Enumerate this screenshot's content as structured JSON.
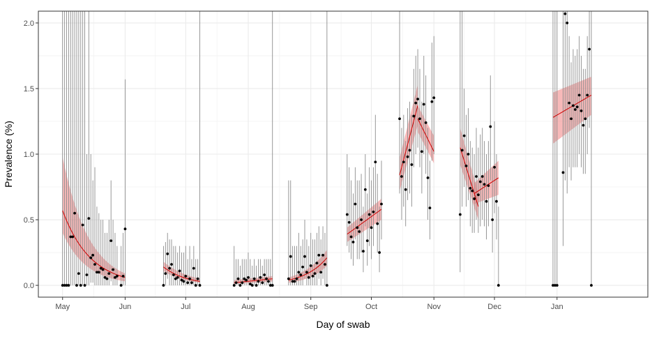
{
  "chart_data": {
    "type": "scatter",
    "title": "",
    "xlabel": "Day of swab",
    "ylabel": "Prevalence (%)",
    "ylim": [
      -0.09,
      2.09
    ],
    "xlim": [
      -12,
      290
    ],
    "grid": true,
    "legend": "none",
    "x_ticks": [
      {
        "day": 0,
        "label": "May"
      },
      {
        "day": 31,
        "label": "Jun"
      },
      {
        "day": 61,
        "label": "Jul"
      },
      {
        "day": 92,
        "label": "Aug"
      },
      {
        "day": 123,
        "label": "Sep"
      },
      {
        "day": 153,
        "label": "Oct"
      },
      {
        "day": 184,
        "label": "Nov"
      },
      {
        "day": 214,
        "label": "Dec"
      },
      {
        "day": 245,
        "label": "Jan"
      }
    ],
    "y_ticks": [
      {
        "value": 0,
        "label": "0.0"
      },
      {
        "value": 0.5,
        "label": "0.5"
      },
      {
        "value": 1.0,
        "label": "1.0"
      },
      {
        "value": 1.5,
        "label": "1.5"
      },
      {
        "value": 2.0,
        "label": "2.0"
      }
    ],
    "colors": {
      "points": "#000000",
      "errorbars": "#8c8c8c",
      "fit_line": "#cc0000",
      "fit_band": "#f08080",
      "grid": "#ebebeb",
      "panel_border": "#333333"
    },
    "points": [
      [
        0,
        0,
        0,
        2.1
      ],
      [
        1,
        0,
        0,
        2.1
      ],
      [
        2,
        0,
        0,
        2.1
      ],
      [
        3,
        0,
        0,
        2.1
      ],
      [
        4,
        0.37,
        0,
        2.1
      ],
      [
        5,
        0.37,
        0,
        2.1
      ],
      [
        6,
        0.55,
        0,
        2.1
      ],
      [
        7,
        0,
        0,
        2.1
      ],
      [
        8,
        0.09,
        0,
        2.1
      ],
      [
        9,
        0,
        0,
        2.1
      ],
      [
        10,
        0.46,
        0,
        2.1
      ],
      [
        11,
        0,
        0,
        2.1
      ],
      [
        12,
        0.08,
        0,
        1.0
      ],
      [
        13,
        0.51,
        0,
        2.1
      ],
      [
        14,
        0.21,
        0.02,
        1.0
      ],
      [
        15,
        0.23,
        0.02,
        0.8
      ],
      [
        16,
        0.16,
        0,
        0.9
      ],
      [
        17,
        0.1,
        0,
        0.6
      ],
      [
        18,
        0.1,
        0,
        0.55
      ],
      [
        19,
        0.13,
        0,
        0.5
      ],
      [
        20,
        0.12,
        0,
        0.5
      ],
      [
        21,
        0.06,
        0,
        0.4
      ],
      [
        22,
        0.05,
        0,
        0.4
      ],
      [
        23,
        0.09,
        0,
        0.5
      ],
      [
        24,
        0.34,
        0.03,
        0.8
      ],
      [
        25,
        0.12,
        0,
        0.5
      ],
      [
        26,
        0.06,
        0,
        0.4
      ],
      [
        27,
        0.07,
        0,
        0.3
      ],
      [
        29,
        0,
        0,
        0.3
      ],
      [
        30,
        0.07,
        0,
        0.4
      ],
      [
        31,
        0.43,
        0,
        1.57
      ],
      [
        50,
        0,
        0,
        0.3
      ],
      [
        51,
        0.09,
        0,
        0.33
      ],
      [
        52,
        0.24,
        0.05,
        0.4
      ],
      [
        53,
        0.13,
        0,
        0.35
      ],
      [
        54,
        0.16,
        0,
        0.35
      ],
      [
        55,
        0.08,
        0,
        0.3
      ],
      [
        56,
        0.05,
        0,
        0.3
      ],
      [
        57,
        0.06,
        0,
        0.25
      ],
      [
        58,
        0.11,
        0,
        0.3
      ],
      [
        59,
        0.04,
        0,
        0.25
      ],
      [
        60,
        0.03,
        0,
        0.25
      ],
      [
        61,
        0.07,
        0,
        0.3
      ],
      [
        62,
        0.02,
        0,
        0.2
      ],
      [
        63,
        0.05,
        0,
        0.3
      ],
      [
        64,
        0.02,
        0,
        0.2
      ],
      [
        65,
        0.13,
        0,
        0.3
      ],
      [
        66,
        0,
        0,
        0.2
      ],
      [
        67,
        0.05,
        0,
        0.2
      ],
      [
        68,
        0,
        0,
        2.1
      ],
      [
        85,
        0,
        0,
        0.3
      ],
      [
        86,
        0.02,
        0,
        0.2
      ],
      [
        87,
        0.05,
        0,
        0.2
      ],
      [
        88,
        0,
        0,
        0.15
      ],
      [
        89,
        0.02,
        0,
        0.2
      ],
      [
        90,
        0.05,
        0,
        0.2
      ],
      [
        91,
        0.04,
        0,
        0.2
      ],
      [
        92,
        0.06,
        0,
        0.25
      ],
      [
        93,
        0.01,
        0,
        0.2
      ],
      [
        94,
        0,
        0,
        0.15
      ],
      [
        95,
        0.05,
        0,
        0.2
      ],
      [
        96,
        0,
        0,
        0.15
      ],
      [
        97,
        0.03,
        0,
        0.2
      ],
      [
        98,
        0.06,
        0,
        0.2
      ],
      [
        99,
        0.02,
        0,
        0.15
      ],
      [
        100,
        0.08,
        0,
        0.2
      ],
      [
        101,
        0.05,
        0,
        0.2
      ],
      [
        102,
        0.03,
        0,
        0.2
      ],
      [
        103,
        0,
        0,
        0.2
      ],
      [
        104,
        0,
        0,
        2.1
      ],
      [
        112,
        0.05,
        0,
        0.8
      ],
      [
        113,
        0.22,
        0,
        0.8
      ],
      [
        114,
        0.03,
        0,
        0.3
      ],
      [
        115,
        0.03,
        0,
        0.3
      ],
      [
        116,
        0.05,
        0,
        0.3
      ],
      [
        117,
        0.1,
        0,
        0.4
      ],
      [
        118,
        0.08,
        0,
        0.3
      ],
      [
        119,
        0.14,
        0,
        0.35
      ],
      [
        120,
        0.22,
        0.05,
        0.5
      ],
      [
        121,
        0.1,
        0,
        0.35
      ],
      [
        122,
        0.06,
        0,
        0.3
      ],
      [
        123,
        0.15,
        0,
        0.4
      ],
      [
        124,
        0.07,
        0,
        0.35
      ],
      [
        125,
        0.09,
        0,
        0.35
      ],
      [
        126,
        0.17,
        0,
        0.4
      ],
      [
        127,
        0.23,
        0.05,
        0.45
      ],
      [
        128,
        0.1,
        0,
        0.35
      ],
      [
        129,
        0.23,
        0.05,
        0.45
      ],
      [
        130,
        0.16,
        0,
        0.4
      ],
      [
        131,
        0,
        0,
        2.1
      ],
      [
        141,
        0.54,
        0.3,
        1.0
      ],
      [
        142,
        0.48,
        0.25,
        0.9
      ],
      [
        143,
        0.37,
        0.2,
        0.8
      ],
      [
        144,
        0.33,
        0.15,
        0.7
      ],
      [
        145,
        0.62,
        0.35,
        0.9
      ],
      [
        146,
        0.44,
        0.2,
        0.8
      ],
      [
        147,
        0.41,
        0.2,
        0.8
      ],
      [
        148,
        0.5,
        0.25,
        0.85
      ],
      [
        149,
        0.26,
        0.1,
        0.6
      ],
      [
        150,
        0.73,
        0.45,
        1.0
      ],
      [
        151,
        0.34,
        0.15,
        0.7
      ],
      [
        152,
        0.54,
        0.3,
        0.9
      ],
      [
        153,
        0.44,
        0.2,
        0.8
      ],
      [
        154,
        0.56,
        0.3,
        0.9
      ],
      [
        155,
        0.94,
        0.55,
        1.3
      ],
      [
        156,
        0.47,
        0.25,
        0.85
      ],
      [
        157,
        0.25,
        0.1,
        0.6
      ],
      [
        158,
        0.62,
        0.35,
        0.95
      ],
      [
        167,
        1.27,
        0.7,
        2.1
      ],
      [
        168,
        0.83,
        0.5,
        1.2
      ],
      [
        169,
        0.94,
        0.6,
        1.3
      ],
      [
        170,
        0.73,
        0.45,
        1.1
      ],
      [
        171,
        0.98,
        0.65,
        1.35
      ],
      [
        172,
        1.03,
        0.7,
        1.4
      ],
      [
        173,
        0.92,
        0.6,
        1.3
      ],
      [
        174,
        1.29,
        0.9,
        1.65
      ],
      [
        175,
        1.39,
        1.0,
        1.75
      ],
      [
        176,
        1.42,
        1.05,
        1.8
      ],
      [
        177,
        1.27,
        0.9,
        1.65
      ],
      [
        178,
        1.02,
        0.7,
        1.4
      ],
      [
        179,
        1.38,
        1.0,
        1.75
      ],
      [
        180,
        1.24,
        0.85,
        1.6
      ],
      [
        181,
        0.82,
        0.5,
        1.2
      ],
      [
        182,
        0.59,
        0.35,
        0.95
      ],
      [
        183,
        1.4,
        0.95,
        1.85
      ],
      [
        184,
        1.43,
        1.0,
        1.9
      ],
      [
        197,
        0.54,
        0.1,
        2.1
      ],
      [
        198,
        1.03,
        0.6,
        2.1
      ],
      [
        199,
        1.14,
        0.75,
        1.5
      ],
      [
        200,
        0.91,
        0.6,
        1.3
      ],
      [
        201,
        1.0,
        0.65,
        1.35
      ],
      [
        202,
        0.74,
        0.45,
        1.1
      ],
      [
        203,
        0.72,
        0.4,
        1.05
      ],
      [
        204,
        0.66,
        0.4,
        1.0
      ],
      [
        205,
        0.83,
        0.5,
        1.2
      ],
      [
        206,
        0.69,
        0.4,
        1.05
      ],
      [
        207,
        0.79,
        0.45,
        1.15
      ],
      [
        208,
        0.83,
        0.5,
        1.2
      ],
      [
        209,
        0.77,
        0.45,
        1.1
      ],
      [
        210,
        0.64,
        0.35,
        1.0
      ],
      [
        211,
        0.76,
        0.45,
        1.1
      ],
      [
        212,
        1.21,
        0.8,
        1.6
      ],
      [
        213,
        0.5,
        0.25,
        0.9
      ],
      [
        214,
        0.9,
        0.55,
        1.25
      ],
      [
        215,
        0.64,
        0.35,
        1.0
      ],
      [
        216,
        0,
        0,
        0.6
      ],
      [
        243,
        0,
        0,
        2.1
      ],
      [
        244,
        0,
        0,
        2.1
      ],
      [
        245,
        0,
        0,
        2.1
      ],
      [
        248,
        0.86,
        0.3,
        2.1
      ],
      [
        249,
        2.07,
        0.8,
        2.1
      ],
      [
        250,
        2.0,
        0.7,
        2.1
      ],
      [
        251,
        1.39,
        0.9,
        1.9
      ],
      [
        252,
        1.27,
        0.8,
        1.7
      ],
      [
        253,
        1.37,
        0.9,
        1.8
      ],
      [
        254,
        1.34,
        0.9,
        1.75
      ],
      [
        255,
        1.36,
        0.9,
        1.8
      ],
      [
        256,
        1.45,
        1.0,
        1.9
      ],
      [
        257,
        1.33,
        0.9,
        1.75
      ],
      [
        258,
        1.22,
        0.85,
        1.65
      ],
      [
        259,
        1.27,
        0.85,
        1.65
      ],
      [
        260,
        1.45,
        1.0,
        1.9
      ],
      [
        261,
        1.8,
        1.2,
        2.1
      ],
      [
        262,
        0,
        0,
        2.1
      ]
    ],
    "fits": [
      {
        "x": [
          0,
          31
        ],
        "y": [
          0.57,
          0.06
        ],
        "lo": [
          0.4,
          0.03
        ],
        "hi": [
          0.98,
          0.09
        ],
        "shape": "exp"
      },
      {
        "x": [
          50,
          68
        ],
        "y": [
          0.14,
          0.03
        ],
        "lo": [
          0.11,
          0.02
        ],
        "hi": [
          0.18,
          0.05
        ],
        "shape": "exp"
      },
      {
        "x": [
          85,
          104
        ],
        "y": [
          0.02,
          0.05
        ],
        "lo": [
          0.01,
          0.03
        ],
        "hi": [
          0.04,
          0.07
        ],
        "shape": "linear"
      },
      {
        "x": [
          112,
          131
        ],
        "y": [
          0.04,
          0.21
        ],
        "lo": [
          0.02,
          0.15
        ],
        "hi": [
          0.06,
          0.27
        ],
        "shape": "exp"
      },
      {
        "x": [
          141,
          158
        ],
        "y": [
          0.39,
          0.58
        ],
        "lo": [
          0.33,
          0.5
        ],
        "hi": [
          0.44,
          0.66
        ],
        "shape": "linear"
      },
      {
        "x": [
          167,
          176
        ],
        "y": [
          0.84,
          1.37
        ],
        "lo": [
          0.72,
          1.22
        ],
        "hi": [
          0.97,
          1.53
        ],
        "shape": "linear"
      },
      {
        "x": [
          176,
          184
        ],
        "y": [
          1.27,
          1.02
        ],
        "lo": [
          1.17,
          0.93
        ],
        "hi": [
          1.37,
          1.14
        ],
        "shape": "linear"
      },
      {
        "x": [
          197,
          206
        ],
        "y": [
          1.05,
          0.6
        ],
        "lo": [
          0.92,
          0.5
        ],
        "hi": [
          1.2,
          0.7
        ],
        "shape": "linear"
      },
      {
        "x": [
          204,
          216
        ],
        "y": [
          0.7,
          0.82
        ],
        "lo": [
          0.62,
          0.69
        ],
        "hi": [
          0.78,
          0.95
        ],
        "shape": "linear"
      },
      {
        "x": [
          243,
          262
        ],
        "y": [
          1.28,
          1.45
        ],
        "lo": [
          1.08,
          1.3
        ],
        "hi": [
          1.47,
          1.59
        ],
        "shape": "linear"
      }
    ]
  }
}
